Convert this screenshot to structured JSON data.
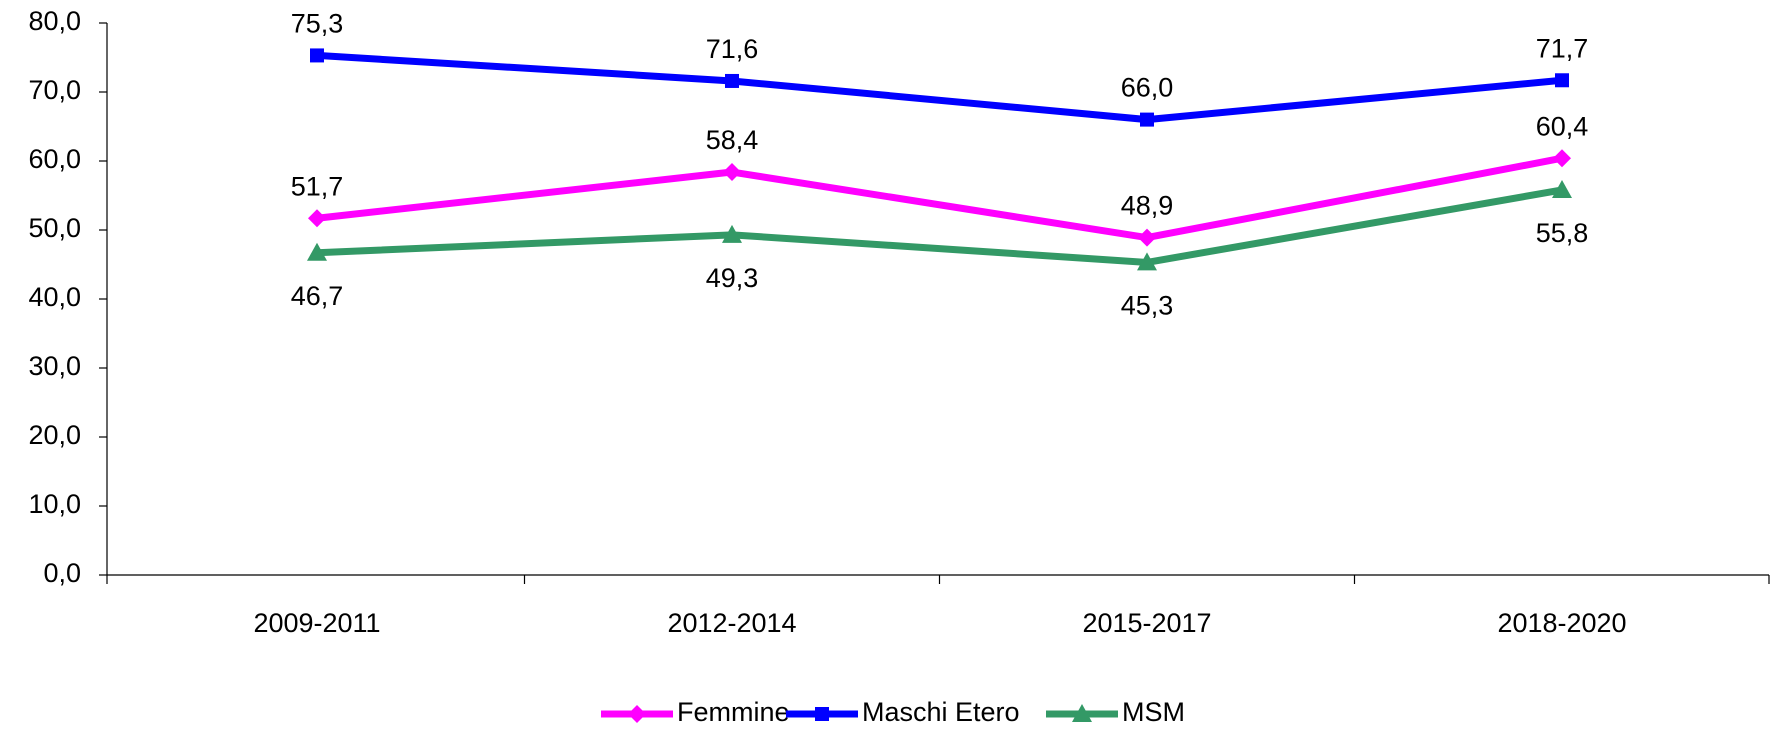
{
  "chart_data": {
    "type": "line",
    "categories": [
      "2009-2011",
      "2012-2014",
      "2015-2017",
      "2018-2020"
    ],
    "series": [
      {
        "name": "Femmine",
        "color": "#ff00ff",
        "marker": "diamond",
        "values": [
          51.7,
          58.4,
          48.9,
          60.4
        ],
        "value_labels": [
          "51,7",
          "58,4",
          "48,9",
          "60,4"
        ]
      },
      {
        "name": "Maschi Etero",
        "color": "#0000ff",
        "marker": "square",
        "values": [
          75.3,
          71.6,
          66.0,
          71.7
        ],
        "value_labels": [
          "75,3",
          "71,6",
          "66,0",
          "71,7"
        ]
      },
      {
        "name": "MSM",
        "color": "#339966",
        "marker": "triangle",
        "values": [
          46.7,
          49.3,
          45.3,
          55.8
        ],
        "value_labels": [
          "46,7",
          "49,3",
          "45,3",
          "55,8"
        ]
      }
    ],
    "ylim": [
      0,
      80
    ],
    "yticks": [
      {
        "value": 0,
        "label": "0,0"
      },
      {
        "value": 10,
        "label": "10,0"
      },
      {
        "value": 20,
        "label": "20,0"
      },
      {
        "value": 30,
        "label": "30,0"
      },
      {
        "value": 40,
        "label": "40,0"
      },
      {
        "value": 50,
        "label": "50,0"
      },
      {
        "value": 60,
        "label": "60,0"
      },
      {
        "value": 70,
        "label": "70,0"
      },
      {
        "value": 80,
        "label": "80,0"
      }
    ],
    "grid": false,
    "legend": "bottom"
  }
}
